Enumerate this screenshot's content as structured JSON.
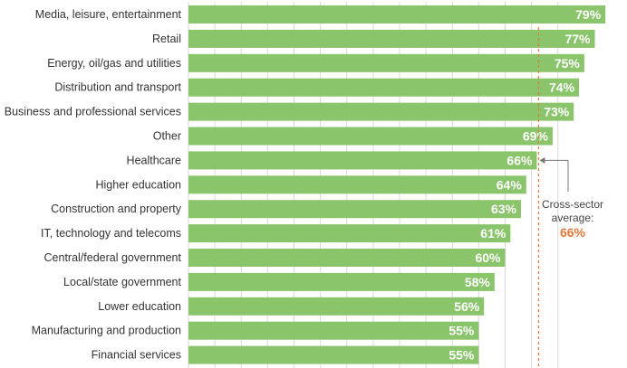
{
  "chart_data": {
    "type": "bar",
    "orientation": "horizontal",
    "categories": [
      "Media, leisure, entertainment",
      "Retail",
      "Energy, oil/gas and utilities",
      "Distribution and transport",
      "Business and professional services",
      "Other",
      "Healthcare",
      "Higher education",
      "Construction and property",
      "IT, technology and telecoms",
      "Central/federal government",
      "Local/state government",
      "Lower education",
      "Manufacturing and production",
      "Financial services"
    ],
    "values": [
      79,
      77,
      75,
      74,
      73,
      69,
      66,
      64,
      63,
      61,
      60,
      58,
      56,
      55,
      55
    ],
    "value_labels": [
      "79%",
      "77%",
      "75%",
      "74%",
      "73%",
      "69%",
      "66%",
      "64%",
      "63%",
      "61%",
      "60%",
      "58%",
      "56%",
      "55%",
      "55%"
    ],
    "xlim": [
      0,
      80
    ],
    "grid": true,
    "reference_line": {
      "value": 66,
      "label_line1": "Cross-sector",
      "label_line2": "average:",
      "value_label": "66%",
      "color": "#e8783a",
      "points_to": "Healthcare"
    },
    "colors": {
      "bar": "#8bc56b",
      "grid": "#d9d9d9",
      "reference": "#e8783a",
      "arrow": "#777777"
    }
  }
}
